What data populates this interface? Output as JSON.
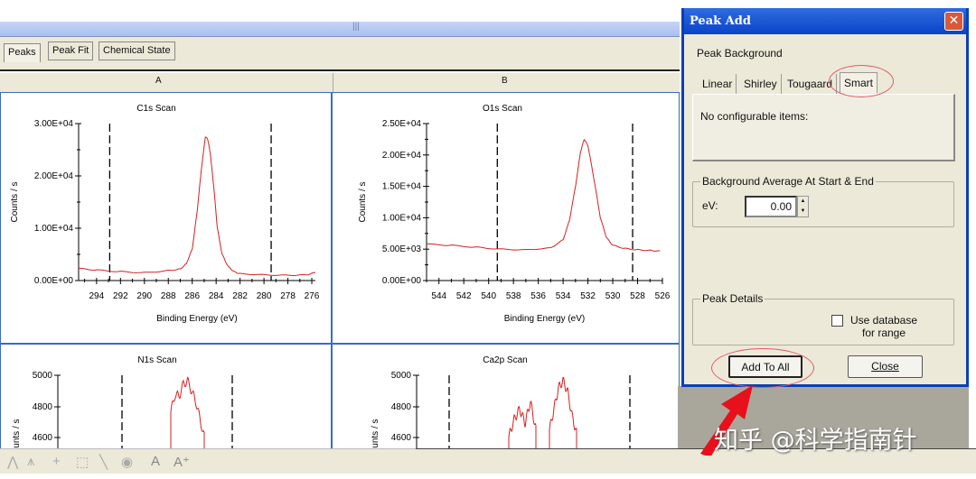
{
  "window": {
    "grip": "|||"
  },
  "view_tabs": [
    {
      "label": "Peaks",
      "selected": true
    },
    {
      "label": "Peak Fit"
    },
    {
      "label": "Chemical State"
    }
  ],
  "columns": [
    "A",
    "B"
  ],
  "chart_data": [
    {
      "type": "line",
      "title": "C1s Scan",
      "xlabel": "Binding Energy (eV)",
      "ylabel": "Counts / s",
      "xlim": [
        295.5,
        275.7
      ],
      "ylim": [
        0,
        30000
      ],
      "x_ticks": [
        "294",
        "292",
        "290",
        "288",
        "286",
        "284",
        "282",
        "280",
        "278",
        "276"
      ],
      "y_ticks": [
        "0.00E+00",
        "1.00E+04",
        "2.00E+04",
        "3.00E+04"
      ],
      "markers": [
        292.9,
        279.4
      ],
      "color": "#d42020",
      "x": [
        295.5,
        294,
        292,
        290,
        288,
        287,
        286.5,
        286,
        285.6,
        285.2,
        284.9,
        284.7,
        284.5,
        284.2,
        283.9,
        283.5,
        283,
        282.5,
        282,
        280,
        278,
        276.5,
        275.7
      ],
      "y": [
        2300,
        2000,
        1700,
        1500,
        1900,
        2200,
        3200,
        6000,
        13000,
        22000,
        27500,
        27000,
        24500,
        18000,
        10000,
        5000,
        2700,
        1700,
        1300,
        1100,
        1000,
        1100,
        1500
      ]
    },
    {
      "type": "line",
      "title": "O1s Scan",
      "xlabel": "Binding Energy (eV)",
      "ylabel": "Counts / s",
      "xlim": [
        545,
        526
      ],
      "ylim": [
        0,
        25000
      ],
      "x_ticks": [
        "544",
        "542",
        "540",
        "538",
        "536",
        "534",
        "532",
        "530",
        "528",
        "526"
      ],
      "y_ticks": [
        "0.00E+00",
        "5.00E+03",
        "1.00E+04",
        "1.50E+04",
        "2.00E+04",
        "2.50E+04"
      ],
      "markers": [
        539.3,
        528.4
      ],
      "color": "#d42020",
      "x": [
        545,
        543,
        541,
        539,
        537,
        535,
        534,
        533.5,
        533,
        532.6,
        532.3,
        532,
        531.5,
        531,
        530.5,
        530,
        529,
        528,
        527,
        526.2
      ],
      "y": [
        5800,
        5600,
        5300,
        5000,
        4900,
        5200,
        6500,
        9500,
        15000,
        20500,
        22500,
        21500,
        16000,
        10000,
        6800,
        5600,
        5100,
        4900,
        4800,
        4700
      ]
    },
    {
      "type": "line",
      "title": "N1s Scan",
      "ylabel": "Counts / s",
      "y_ticks": [
        "4600",
        "4800",
        "5000"
      ],
      "color": "#d42020"
    },
    {
      "type": "line",
      "title": "Ca2p Scan",
      "ylabel": "Counts / s",
      "y_ticks": [
        "4600",
        "4800",
        "5000"
      ],
      "color": "#d42020"
    }
  ],
  "toolbar": {
    "icons": [
      "peak-icon",
      "peak-fit-icon",
      "crosshair-icon",
      "region-icon",
      "line-icon",
      "eye-icon",
      "text-icon",
      "text-add-icon"
    ]
  },
  "dialog": {
    "title": "Peak Add",
    "close": "✕",
    "peak_background": "Peak Background",
    "tabs": [
      {
        "label": "Linear"
      },
      {
        "label": "Shirley"
      },
      {
        "label": "Tougaard"
      },
      {
        "label": "Smart",
        "selected": true
      }
    ],
    "tab_content": "No configurable items:",
    "bg_group": "Background Average At Start & End",
    "ev_label": "eV:",
    "ev_value": "0.00",
    "peak_details": "Peak Details",
    "use_database": "Use database for range",
    "use_database_checked": false,
    "add_to_all": "Add To All",
    "close_button": "Close"
  },
  "annotation_color": "#e8101a",
  "watermark": "知乎 @科学指南针"
}
